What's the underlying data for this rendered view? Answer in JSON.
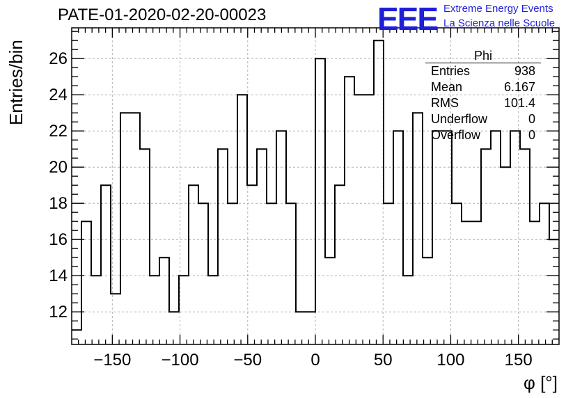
{
  "title": "PATE-01-2020-02-20-00023",
  "logo": {
    "mark": "EEE",
    "line1": "Extreme Energy Events",
    "line2": "La Scienza nelle Scuole",
    "color": "#1f1fd8"
  },
  "stats": {
    "name": "Phi",
    "rows": [
      {
        "label": "Entries",
        "value": "938"
      },
      {
        "label": "Mean",
        "value": "6.167"
      },
      {
        "label": "RMS",
        "value": "101.4"
      },
      {
        "label": "Underflow",
        "value": "0"
      },
      {
        "label": "Overflow",
        "value": "0"
      }
    ]
  },
  "chart_data": {
    "type": "histogram",
    "xlabel": "φ [°]",
    "ylabel": "Entries/bin",
    "xlim": [
      -180,
      180
    ],
    "ylim": [
      10.2,
      27.7
    ],
    "bin_width": 7.2,
    "x_ticks": [
      -150,
      -100,
      -50,
      0,
      50,
      100,
      150
    ],
    "x_tick_labels": [
      "−150",
      "−100",
      "−50",
      "0",
      "50",
      "100",
      "150"
    ],
    "y_ticks": [
      12,
      14,
      16,
      18,
      20,
      22,
      24,
      26
    ],
    "grid": true,
    "line_color": "#000000",
    "values": [
      11,
      17,
      14,
      19,
      13,
      23,
      23,
      21,
      14,
      15,
      12,
      14,
      19,
      18,
      14,
      21,
      18,
      24,
      19,
      21,
      18,
      22,
      18,
      12,
      12,
      26,
      15,
      19,
      25,
      24,
      24,
      27,
      18,
      22,
      14,
      23,
      15,
      22,
      22,
      18,
      17,
      17,
      21,
      22,
      20,
      22,
      21,
      17,
      18,
      16
    ]
  }
}
